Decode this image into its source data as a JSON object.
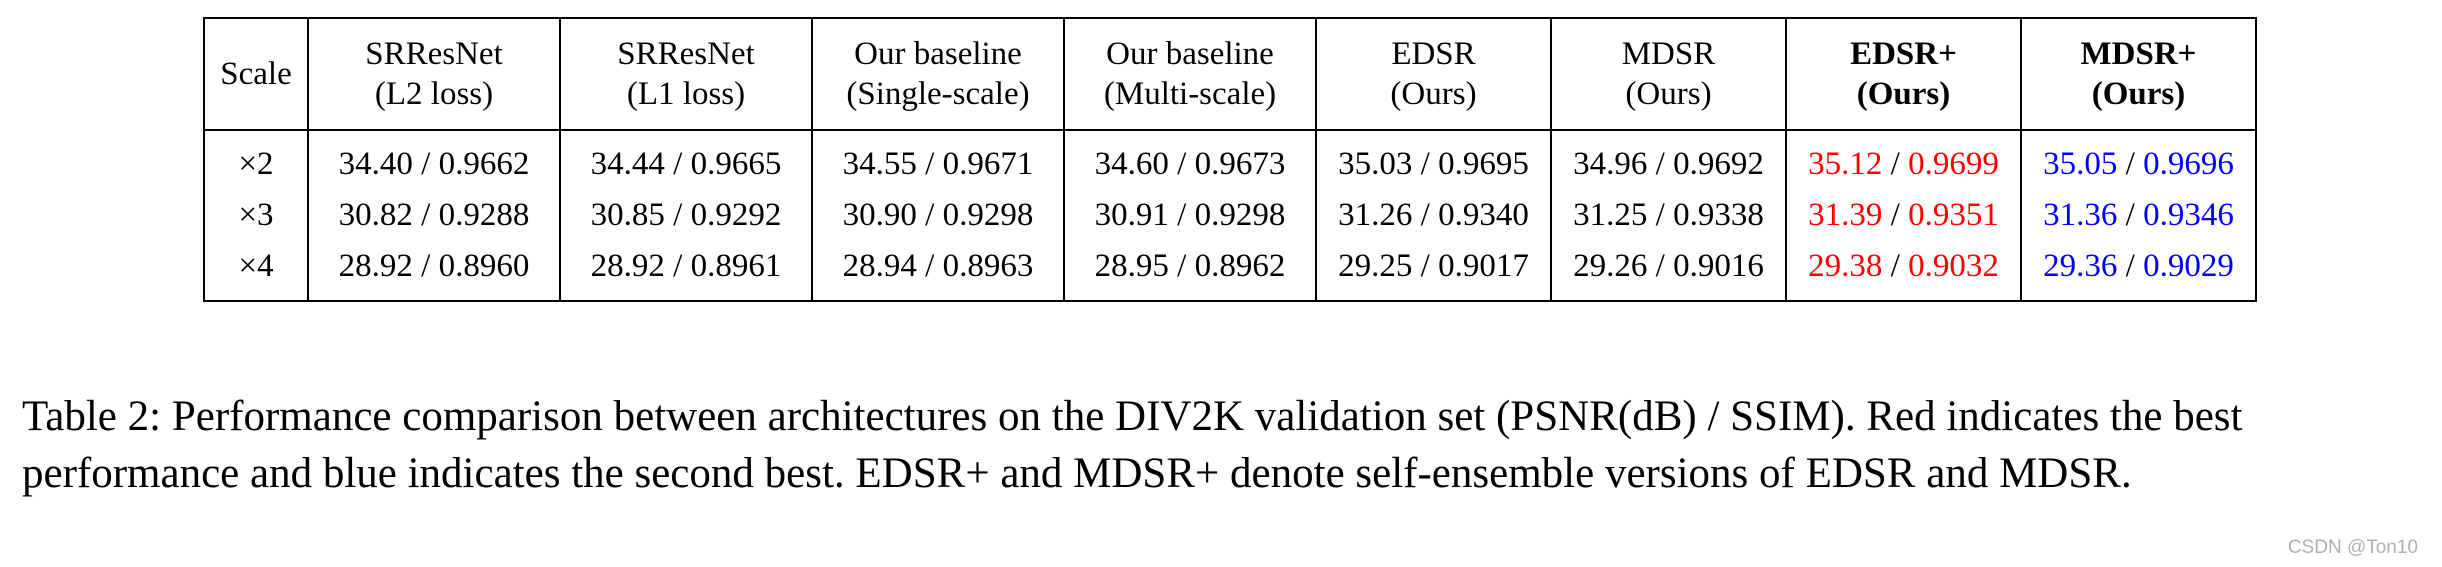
{
  "table": {
    "headers": [
      {
        "line1": "Scale",
        "line2": "",
        "bold": false
      },
      {
        "line1": "SRResNet",
        "line2": "(L2 loss)",
        "bold": false
      },
      {
        "line1": "SRResNet",
        "line2": "(L1 loss)",
        "bold": false
      },
      {
        "line1": "Our baseline",
        "line2": "(Single-scale)",
        "bold": false
      },
      {
        "line1": "Our baseline",
        "line2": "(Multi-scale)",
        "bold": false
      },
      {
        "line1": "EDSR",
        "line2": "(Ours)",
        "bold": false
      },
      {
        "line1": "MDSR",
        "line2": "(Ours)",
        "bold": false
      },
      {
        "line1": "EDSR+",
        "line2": "(Ours)",
        "bold": true
      },
      {
        "line1": "MDSR+",
        "line2": "(Ours)",
        "bold": true
      }
    ],
    "separator": " / ",
    "rows": [
      {
        "scale": "×2",
        "cells": [
          {
            "psnr": "34.40",
            "ssim": "0.9662",
            "color": "black"
          },
          {
            "psnr": "34.44",
            "ssim": "0.9665",
            "color": "black"
          },
          {
            "psnr": "34.55",
            "ssim": "0.9671",
            "color": "black"
          },
          {
            "psnr": "34.60",
            "ssim": "0.9673",
            "color": "black"
          },
          {
            "psnr": "35.03",
            "ssim": "0.9695",
            "color": "black"
          },
          {
            "psnr": "34.96",
            "ssim": "0.9692",
            "color": "black"
          },
          {
            "psnr": "35.12",
            "ssim": "0.9699",
            "color": "red"
          },
          {
            "psnr": "35.05",
            "ssim": "0.9696",
            "color": "blue"
          }
        ]
      },
      {
        "scale": "×3",
        "cells": [
          {
            "psnr": "30.82",
            "ssim": "0.9288",
            "color": "black"
          },
          {
            "psnr": "30.85",
            "ssim": "0.9292",
            "color": "black"
          },
          {
            "psnr": "30.90",
            "ssim": "0.9298",
            "color": "black"
          },
          {
            "psnr": "30.91",
            "ssim": "0.9298",
            "color": "black"
          },
          {
            "psnr": "31.26",
            "ssim": "0.9340",
            "color": "black"
          },
          {
            "psnr": "31.25",
            "ssim": "0.9338",
            "color": "black"
          },
          {
            "psnr": "31.39",
            "ssim": "0.9351",
            "color": "red"
          },
          {
            "psnr": "31.36",
            "ssim": "0.9346",
            "color": "blue"
          }
        ]
      },
      {
        "scale": "×4",
        "cells": [
          {
            "psnr": "28.92",
            "ssim": "0.8960",
            "color": "black"
          },
          {
            "psnr": "28.92",
            "ssim": "0.8961",
            "color": "black"
          },
          {
            "psnr": "28.94",
            "ssim": "0.8963",
            "color": "black"
          },
          {
            "psnr": "28.95",
            "ssim": "0.8962",
            "color": "black"
          },
          {
            "psnr": "29.25",
            "ssim": "0.9017",
            "color": "black"
          },
          {
            "psnr": "29.26",
            "ssim": "0.9016",
            "color": "black"
          },
          {
            "psnr": "29.38",
            "ssim": "0.9032",
            "color": "red"
          },
          {
            "psnr": "29.36",
            "ssim": "0.9029",
            "color": "blue"
          }
        ]
      }
    ]
  },
  "caption": "Table 2: Performance comparison between architectures on the DIV2K validation set (PSNR(dB) / SSIM). Red indicates the best performance and blue indicates the second best. EDSR+ and MDSR+ denote self-ensemble versions of EDSR and MDSR.",
  "watermark": "CSDN @Ton10",
  "colors": {
    "best": "#ff0000",
    "second": "#0000ff",
    "text": "#000000"
  }
}
